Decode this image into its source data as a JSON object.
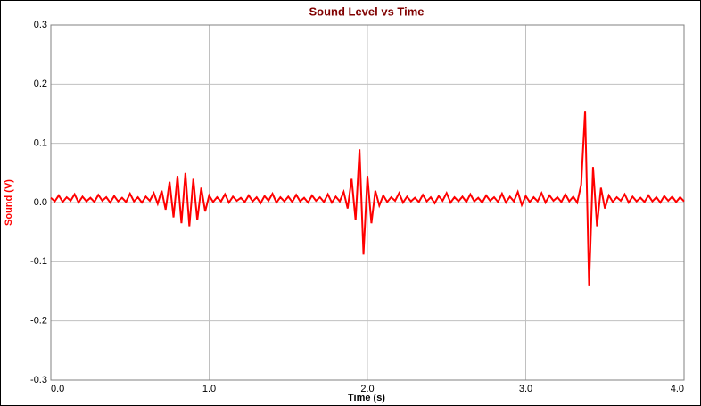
{
  "chart_data": {
    "type": "line",
    "title": "Sound Level vs Time",
    "xlabel": "Time (s)",
    "ylabel": "Sound (V)",
    "xlim": [
      0,
      4
    ],
    "ylim": [
      -0.3,
      0.3
    ],
    "grid": true,
    "xticks": [
      {
        "value": 0,
        "label": "0.0"
      },
      {
        "value": 1,
        "label": "1.0"
      },
      {
        "value": 2,
        "label": "2.0"
      },
      {
        "value": 3,
        "label": "3.0"
      },
      {
        "value": 4,
        "label": "4.0"
      }
    ],
    "yticks": [
      0.3,
      0.2,
      0.1,
      {
        "value": 0,
        "label": "0.0"
      },
      -0.1,
      -0.2,
      -0.3
    ],
    "x": [
      0,
      0.025,
      0.05,
      0.075,
      0.1,
      0.125,
      0.15,
      0.175,
      0.2,
      0.225,
      0.25,
      0.275,
      0.3,
      0.325,
      0.35,
      0.375,
      0.4,
      0.425,
      0.45,
      0.475,
      0.5,
      0.525,
      0.55,
      0.575,
      0.6,
      0.625,
      0.65,
      0.675,
      0.7,
      0.725,
      0.75,
      0.775,
      0.8,
      0.825,
      0.85,
      0.875,
      0.9,
      0.925,
      0.95,
      0.975,
      1,
      1.025,
      1.05,
      1.075,
      1.1,
      1.125,
      1.15,
      1.175,
      1.2,
      1.225,
      1.25,
      1.275,
      1.3,
      1.325,
      1.35,
      1.375,
      1.4,
      1.425,
      1.45,
      1.475,
      1.5,
      1.525,
      1.55,
      1.575,
      1.6,
      1.625,
      1.65,
      1.675,
      1.7,
      1.725,
      1.75,
      1.775,
      1.8,
      1.825,
      1.85,
      1.875,
      1.9,
      1.925,
      1.95,
      1.975,
      2,
      2.025,
      2.05,
      2.075,
      2.1,
      2.125,
      2.15,
      2.175,
      2.2,
      2.225,
      2.25,
      2.275,
      2.3,
      2.325,
      2.35,
      2.375,
      2.4,
      2.425,
      2.45,
      2.475,
      2.5,
      2.525,
      2.55,
      2.575,
      2.6,
      2.625,
      2.65,
      2.675,
      2.7,
      2.725,
      2.75,
      2.775,
      2.8,
      2.825,
      2.85,
      2.875,
      2.9,
      2.925,
      2.95,
      2.975,
      3,
      3.025,
      3.05,
      3.075,
      3.1,
      3.125,
      3.15,
      3.175,
      3.2,
      3.225,
      3.25,
      3.275,
      3.3,
      3.325,
      3.35,
      3.375,
      3.4,
      3.425,
      3.45,
      3.475,
      3.5,
      3.525,
      3.55,
      3.575,
      3.6,
      3.625,
      3.65,
      3.675,
      3.7,
      3.725,
      3.75,
      3.775,
      3.8,
      3.825,
      3.85,
      3.875,
      3.9,
      3.925,
      3.95,
      3.975,
      4
    ],
    "series": [
      {
        "color": "#ff0000",
        "values": [
          0.008,
          0.002,
          0.012,
          0.001,
          0.009,
          0.003,
          0.014,
          0.0,
          0.01,
          0.002,
          0.008,
          0.001,
          0.013,
          0.003,
          0.009,
          0.0,
          0.011,
          0.002,
          0.008,
          0.001,
          0.015,
          0.002,
          0.009,
          0.0,
          0.01,
          0.003,
          0.016,
          -0.002,
          0.02,
          -0.012,
          0.035,
          -0.025,
          0.045,
          -0.035,
          0.05,
          -0.04,
          0.04,
          -0.03,
          0.025,
          -0.015,
          0.012,
          0.001,
          0.009,
          0.002,
          0.014,
          0.0,
          0.01,
          0.003,
          0.008,
          0.001,
          0.012,
          0.002,
          0.009,
          -0.001,
          0.011,
          0.003,
          0.015,
          0.0,
          0.009,
          0.002,
          0.01,
          0.001,
          0.013,
          0.002,
          0.008,
          0.0,
          0.012,
          0.003,
          0.009,
          0.001,
          0.014,
          0.0,
          0.01,
          0.002,
          0.018,
          -0.01,
          0.04,
          -0.03,
          0.09,
          -0.088,
          0.045,
          -0.035,
          0.02,
          -0.005,
          0.012,
          0.001,
          0.009,
          0.003,
          0.016,
          0.0,
          0.01,
          0.002,
          0.008,
          0.001,
          0.013,
          0.002,
          0.009,
          -0.001,
          0.011,
          0.003,
          0.016,
          0.0,
          0.009,
          0.002,
          0.01,
          0.001,
          0.014,
          0.002,
          0.008,
          0.0,
          0.012,
          0.003,
          0.009,
          0.001,
          0.015,
          0.0,
          0.01,
          0.002,
          0.018,
          -0.004,
          0.011,
          0.001,
          0.009,
          0.002,
          0.016,
          0.0,
          0.012,
          0.003,
          0.009,
          0.001,
          0.014,
          0.002,
          0.01,
          0.0,
          0.03,
          0.155,
          -0.14,
          0.06,
          -0.04,
          0.025,
          -0.01,
          0.012,
          0.001,
          0.009,
          0.003,
          0.014,
          0.0,
          0.01,
          0.002,
          0.008,
          0.001,
          0.012,
          0.002,
          0.009,
          0.0,
          0.011,
          0.003,
          0.01,
          0.001,
          0.009,
          0.002
        ]
      }
    ]
  }
}
